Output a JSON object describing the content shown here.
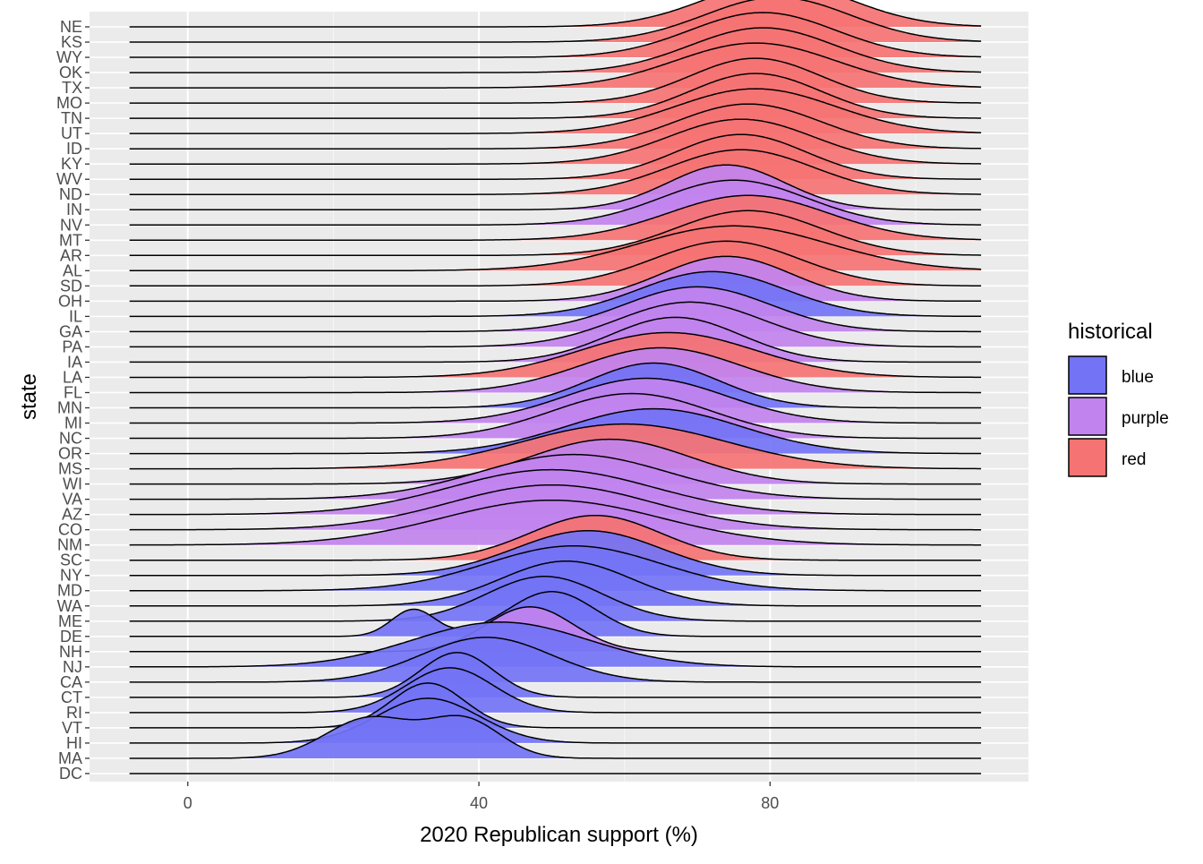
{
  "chart_data": {
    "type": "ridgeline",
    "title": "",
    "xlabel": "2020 Republican support (%)",
    "ylabel": "state",
    "xlim": [
      -13.5,
      115.5
    ],
    "x_ticks": [
      0,
      40,
      80
    ],
    "grid": true,
    "legend": {
      "title": "historical",
      "placement": "right",
      "entries": [
        {
          "name": "blue",
          "color": "#7373F5"
        },
        {
          "name": "purple",
          "color": "#C183EE"
        },
        {
          "name": "red",
          "color": "#F57373"
        }
      ]
    },
    "series": [
      {
        "state": "NE",
        "historical": "red",
        "peaks": [
          [
            81,
            10,
            1
          ]
        ]
      },
      {
        "state": "KS",
        "historical": "red",
        "peaks": [
          [
            81,
            10,
            1
          ]
        ]
      },
      {
        "state": "WY",
        "historical": "red",
        "peaks": [
          [
            79,
            10,
            1
          ]
        ]
      },
      {
        "state": "OK",
        "historical": "red",
        "peaks": [
          [
            79,
            10,
            1
          ]
        ]
      },
      {
        "state": "TX",
        "historical": "red",
        "peaks": [
          [
            78,
            11,
            1
          ]
        ]
      },
      {
        "state": "MO",
        "historical": "red",
        "peaks": [
          [
            78,
            9,
            1
          ]
        ]
      },
      {
        "state": "TN",
        "historical": "red",
        "peaks": [
          [
            78,
            9,
            1
          ]
        ]
      },
      {
        "state": "UT",
        "historical": "red",
        "peaks": [
          [
            78,
            11,
            1
          ]
        ]
      },
      {
        "state": "ID",
        "historical": "red",
        "peaks": [
          [
            77,
            10,
            1
          ]
        ]
      },
      {
        "state": "KY",
        "historical": "red",
        "peaks": [
          [
            76,
            10,
            1
          ]
        ]
      },
      {
        "state": "WV",
        "historical": "red",
        "peaks": [
          [
            76,
            9,
            1
          ]
        ]
      },
      {
        "state": "ND",
        "historical": "red",
        "peaks": [
          [
            76,
            10,
            1
          ]
        ]
      },
      {
        "state": "IN",
        "historical": "purple",
        "peaks": [
          [
            74,
            8,
            1
          ]
        ]
      },
      {
        "state": "NV",
        "historical": "purple",
        "peaks": [
          [
            75,
            10,
            1
          ]
        ]
      },
      {
        "state": "MT",
        "historical": "red",
        "peaks": [
          [
            77,
            11,
            1
          ]
        ]
      },
      {
        "state": "AR",
        "historical": "red",
        "peaks": [
          [
            77,
            10,
            1
          ]
        ]
      },
      {
        "state": "AL",
        "historical": "red",
        "peaks": [
          [
            75,
            13,
            1
          ]
        ]
      },
      {
        "state": "SD",
        "historical": "red",
        "peaks": [
          [
            74,
            10,
            1
          ]
        ]
      },
      {
        "state": "OH",
        "historical": "purple",
        "peaks": [
          [
            74,
            9,
            1
          ]
        ]
      },
      {
        "state": "IL",
        "historical": "blue",
        "peaks": [
          [
            72,
            10,
            1
          ]
        ]
      },
      {
        "state": "GA",
        "historical": "purple",
        "peaks": [
          [
            70,
            10,
            1
          ]
        ]
      },
      {
        "state": "PA",
        "historical": "purple",
        "peaks": [
          [
            69,
            10,
            1
          ]
        ]
      },
      {
        "state": "IA",
        "historical": "purple",
        "peaks": [
          [
            67,
            9,
            1
          ]
        ]
      },
      {
        "state": "LA",
        "historical": "red",
        "peaks": [
          [
            66,
            12,
            1
          ]
        ]
      },
      {
        "state": "FL",
        "historical": "purple",
        "peaks": [
          [
            65,
            11,
            1
          ]
        ]
      },
      {
        "state": "MN",
        "historical": "blue",
        "peaks": [
          [
            64,
            9,
            1
          ]
        ]
      },
      {
        "state": "MI",
        "historical": "purple",
        "peaks": [
          [
            63,
            11,
            1
          ]
        ]
      },
      {
        "state": "NC",
        "historical": "purple",
        "peaks": [
          [
            61,
            11,
            1
          ]
        ]
      },
      {
        "state": "OR",
        "historical": "blue",
        "peaks": [
          [
            64,
            12,
            1
          ]
        ]
      },
      {
        "state": "MS",
        "historical": "red",
        "peaks": [
          [
            60,
            14,
            1
          ]
        ]
      },
      {
        "state": "WI",
        "historical": "purple",
        "peaks": [
          [
            58,
            11,
            1
          ]
        ]
      },
      {
        "state": "VA",
        "historical": "purple",
        "peaks": [
          [
            53,
            13,
            1
          ]
        ]
      },
      {
        "state": "AZ",
        "historical": "purple",
        "peaks": [
          [
            50,
            14,
            1
          ]
        ]
      },
      {
        "state": "CO",
        "historical": "purple",
        "peaks": [
          [
            50,
            14,
            1
          ]
        ]
      },
      {
        "state": "NM",
        "historical": "purple",
        "peaks": [
          [
            50,
            15,
            1
          ]
        ]
      },
      {
        "state": "SC",
        "historical": "red",
        "peaks": [
          [
            56,
            9,
            1
          ]
        ]
      },
      {
        "state": "NY",
        "historical": "blue",
        "peaks": [
          [
            55,
            10,
            1
          ]
        ]
      },
      {
        "state": "MD",
        "historical": "blue",
        "peaks": [
          [
            53,
            12,
            1
          ]
        ]
      },
      {
        "state": "WA",
        "historical": "blue",
        "peaks": [
          [
            52,
            9,
            1
          ]
        ]
      },
      {
        "state": "ME",
        "historical": "blue",
        "peaks": [
          [
            49,
            8,
            1
          ]
        ]
      },
      {
        "state": "DE",
        "historical": "blue",
        "peaks": [
          [
            31,
            3,
            0.6
          ],
          [
            50,
            6,
            1
          ]
        ]
      },
      {
        "state": "NH",
        "historical": "purple",
        "peaks": [
          [
            47,
            6,
            1
          ]
        ]
      },
      {
        "state": "NJ",
        "historical": "blue",
        "peaks": [
          [
            43,
            12,
            1
          ]
        ]
      },
      {
        "state": "CA",
        "historical": "blue",
        "peaks": [
          [
            41,
            9,
            1
          ]
        ]
      },
      {
        "state": "CT",
        "historical": "blue",
        "peaks": [
          [
            37,
            5,
            1
          ]
        ]
      },
      {
        "state": "RI",
        "historical": "blue",
        "peaks": [
          [
            36,
            6,
            1
          ]
        ]
      },
      {
        "state": "VT",
        "historical": "blue",
        "peaks": [
          [
            33,
            5,
            1
          ]
        ]
      },
      {
        "state": "HI",
        "historical": "blue",
        "peaks": [
          [
            33,
            7,
            1
          ]
        ]
      },
      {
        "state": "MA",
        "historical": "blue",
        "peaks": [
          [
            25,
            6,
            0.9
          ],
          [
            38,
            5,
            0.85
          ]
        ]
      },
      {
        "state": "DC",
        "historical": "blue",
        "peaks": []
      }
    ]
  }
}
